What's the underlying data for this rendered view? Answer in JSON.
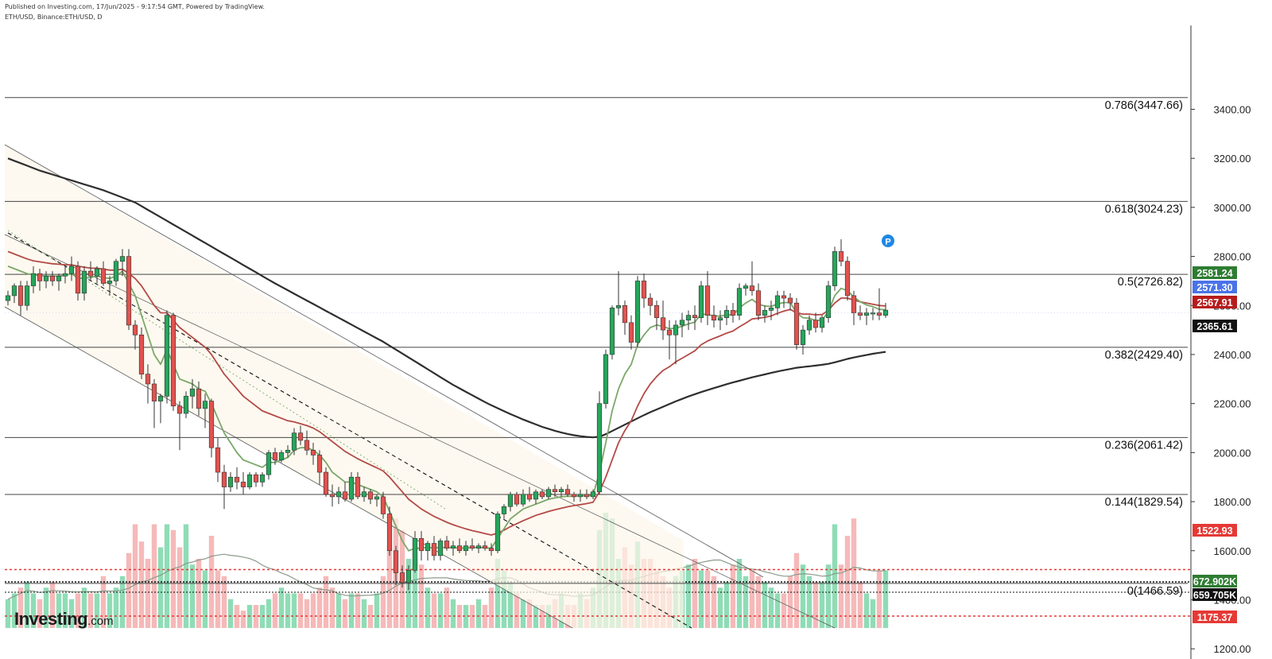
{
  "header": {
    "published": "Published on Investing.com, 17/Jun/2025 - 9:17:54 GMT, Powered by TradingView.",
    "symbol": "ETH/USD, Binance:ETH/USD, D"
  },
  "logo": {
    "main": "Investing",
    "suffix": ".com"
  },
  "colors": {
    "up": "#26a65b",
    "down": "#e0534f",
    "ema_fast": "#7aa86a",
    "ema_mid": "#b34a46",
    "sma_long": "#2e2e2e",
    "vol_up": "#8fdcb6",
    "vol_down": "#f6b9b9",
    "support": "#e53935",
    "badge_green": "#2e7d32",
    "badge_blue": "#4a73e8",
    "badge_red": "#b71c1c",
    "badge_black": "#111111"
  },
  "chart_data": {
    "type": "candlestick",
    "title": "ETH/USD, Binance:ETH/USD, D",
    "price_range": [
      1220,
      3620
    ],
    "grid": false,
    "price_ticks": [
      "3400.00",
      "3200.00",
      "3000.00",
      "2800.00",
      "2600.00",
      "2400.00",
      "2200.00",
      "2000.00",
      "1800.00",
      "1600.00",
      "1400.00",
      "1200.00"
    ],
    "fib_levels": [
      {
        "label": "0.786(3447.66)",
        "value": 3447.66
      },
      {
        "label": "0.618(3024.23)",
        "value": 3024.23
      },
      {
        "label": "0.5(2726.82)",
        "value": 2726.82
      },
      {
        "label": "0.382(2429.40)",
        "value": 2429.4
      },
      {
        "label": "0.236(2061.42)",
        "value": 2061.42
      },
      {
        "label": "0.144(1829.54)",
        "value": 1829.54
      },
      {
        "label": "0(1466.59)",
        "value": 1466.59
      }
    ],
    "support_levels": [
      1522.93,
      1175.37
    ],
    "price_badges": [
      {
        "label": "2581.24",
        "value": 2581.24,
        "color": "#2e7d32"
      },
      {
        "label": "2571.30",
        "value": 2571.3,
        "color": "#4a73e8"
      },
      {
        "label": "2567.91",
        "value": 2567.91,
        "color": "#b71c1c"
      },
      {
        "label": "2365.61",
        "value": 2365.61,
        "color": "#111111"
      },
      {
        "label": "1522.93",
        "value": 1522.93,
        "color": "#e53935"
      },
      {
        "label": "1175.37",
        "value": 1175.37,
        "color": "#e53935"
      }
    ],
    "volume_badges": [
      {
        "label": "672.902K",
        "color": "#2e7d32"
      },
      {
        "label": "659.705K",
        "color": "#111111"
      }
    ],
    "candles": [
      [
        2620,
        2660,
        2600,
        2640
      ],
      [
        2640,
        2690,
        2610,
        2680
      ],
      [
        2680,
        2700,
        2560,
        2600
      ],
      [
        2600,
        2700,
        2580,
        2680
      ],
      [
        2680,
        2760,
        2650,
        2730
      ],
      [
        2730,
        2750,
        2660,
        2700
      ],
      [
        2700,
        2740,
        2670,
        2720
      ],
      [
        2720,
        2740,
        2680,
        2700
      ],
      [
        2700,
        2730,
        2660,
        2720
      ],
      [
        2720,
        2760,
        2690,
        2730
      ],
      [
        2730,
        2800,
        2700,
        2760
      ],
      [
        2760,
        2780,
        2620,
        2650
      ],
      [
        2650,
        2760,
        2620,
        2740
      ],
      [
        2740,
        2780,
        2700,
        2720
      ],
      [
        2720,
        2760,
        2690,
        2750
      ],
      [
        2750,
        2780,
        2680,
        2690
      ],
      [
        2690,
        2720,
        2640,
        2700
      ],
      [
        2700,
        2790,
        2680,
        2780
      ],
      [
        2780,
        2830,
        2720,
        2800
      ],
      [
        2800,
        2830,
        2500,
        2520
      ],
      [
        2520,
        2540,
        2420,
        2480
      ],
      [
        2480,
        2510,
        2300,
        2320
      ],
      [
        2320,
        2360,
        2200,
        2280
      ],
      [
        2280,
        2300,
        2100,
        2210
      ],
      [
        2210,
        2240,
        2120,
        2230
      ],
      [
        2230,
        2580,
        2200,
        2560
      ],
      [
        2560,
        2570,
        2170,
        2190
      ],
      [
        2190,
        2210,
        2010,
        2160
      ],
      [
        2160,
        2250,
        2140,
        2230
      ],
      [
        2230,
        2300,
        2180,
        2260
      ],
      [
        2260,
        2290,
        2150,
        2180
      ],
      [
        2180,
        2240,
        2100,
        2210
      ],
      [
        2210,
        2220,
        1980,
        2020
      ],
      [
        2020,
        2060,
        1880,
        1920
      ],
      [
        1920,
        1950,
        1770,
        1860
      ],
      [
        1860,
        1920,
        1840,
        1900
      ],
      [
        1900,
        1940,
        1850,
        1880
      ],
      [
        1880,
        1920,
        1830,
        1860
      ],
      [
        1860,
        1920,
        1850,
        1910
      ],
      [
        1910,
        1920,
        1860,
        1880
      ],
      [
        1880,
        1920,
        1860,
        1910
      ],
      [
        1910,
        2010,
        1890,
        2000
      ],
      [
        2000,
        2020,
        1950,
        1970
      ],
      [
        1970,
        2010,
        1960,
        2000
      ],
      [
        2000,
        2030,
        1980,
        2010
      ],
      [
        2010,
        2100,
        1990,
        2080
      ],
      [
        2080,
        2110,
        2030,
        2050
      ],
      [
        2050,
        2090,
        1990,
        2010
      ],
      [
        2010,
        2040,
        1950,
        1990
      ],
      [
        1990,
        2010,
        1870,
        1920
      ],
      [
        1920,
        1940,
        1820,
        1830
      ],
      [
        1830,
        1870,
        1780,
        1820
      ],
      [
        1820,
        1860,
        1790,
        1840
      ],
      [
        1840,
        1880,
        1800,
        1810
      ],
      [
        1810,
        1920,
        1800,
        1900
      ],
      [
        1900,
        1920,
        1810,
        1820
      ],
      [
        1820,
        1860,
        1800,
        1840
      ],
      [
        1840,
        1850,
        1790,
        1810
      ],
      [
        1810,
        1830,
        1780,
        1820
      ],
      [
        1820,
        1840,
        1730,
        1750
      ],
      [
        1750,
        1780,
        1580,
        1600
      ],
      [
        1600,
        1620,
        1460,
        1510
      ],
      [
        1510,
        1540,
        1450,
        1470
      ],
      [
        1470,
        1540,
        1440,
        1520
      ],
      [
        1520,
        1680,
        1510,
        1650
      ],
      [
        1650,
        1680,
        1560,
        1600
      ],
      [
        1600,
        1640,
        1560,
        1630
      ],
      [
        1630,
        1660,
        1560,
        1580
      ],
      [
        1580,
        1650,
        1560,
        1640
      ],
      [
        1640,
        1660,
        1600,
        1610
      ],
      [
        1610,
        1640,
        1580,
        1620
      ],
      [
        1620,
        1650,
        1590,
        1600
      ],
      [
        1600,
        1640,
        1580,
        1620
      ],
      [
        1620,
        1650,
        1600,
        1610
      ],
      [
        1610,
        1630,
        1590,
        1620
      ],
      [
        1620,
        1640,
        1600,
        1610
      ],
      [
        1610,
        1630,
        1580,
        1600
      ],
      [
        1600,
        1760,
        1590,
        1750
      ],
      [
        1750,
        1790,
        1730,
        1780
      ],
      [
        1780,
        1840,
        1760,
        1830
      ],
      [
        1830,
        1840,
        1780,
        1790
      ],
      [
        1790,
        1850,
        1780,
        1830
      ],
      [
        1830,
        1860,
        1800,
        1810
      ],
      [
        1810,
        1850,
        1790,
        1840
      ],
      [
        1840,
        1850,
        1810,
        1820
      ],
      [
        1820,
        1860,
        1810,
        1850
      ],
      [
        1850,
        1870,
        1820,
        1840
      ],
      [
        1840,
        1860,
        1820,
        1850
      ],
      [
        1850,
        1870,
        1820,
        1830
      ],
      [
        1830,
        1840,
        1800,
        1820
      ],
      [
        1820,
        1850,
        1800,
        1830
      ],
      [
        1830,
        1850,
        1810,
        1820
      ],
      [
        1820,
        1850,
        1810,
        1840
      ],
      [
        1840,
        2250,
        1830,
        2200
      ],
      [
        2200,
        2420,
        2180,
        2400
      ],
      [
        2400,
        2600,
        2380,
        2590
      ],
      [
        2590,
        2740,
        2560,
        2600
      ],
      [
        2600,
        2620,
        2480,
        2530
      ],
      [
        2530,
        2560,
        2420,
        2450
      ],
      [
        2450,
        2720,
        2430,
        2700
      ],
      [
        2700,
        2730,
        2590,
        2630
      ],
      [
        2630,
        2650,
        2560,
        2600
      ],
      [
        2600,
        2620,
        2500,
        2550
      ],
      [
        2550,
        2620,
        2460,
        2500
      ],
      [
        2500,
        2540,
        2380,
        2480
      ],
      [
        2480,
        2540,
        2360,
        2520
      ],
      [
        2520,
        2570,
        2470,
        2540
      ],
      [
        2540,
        2580,
        2500,
        2560
      ],
      [
        2560,
        2600,
        2500,
        2550
      ],
      [
        2550,
        2700,
        2530,
        2680
      ],
      [
        2680,
        2740,
        2520,
        2560
      ],
      [
        2560,
        2600,
        2510,
        2540
      ],
      [
        2540,
        2580,
        2500,
        2550
      ],
      [
        2550,
        2600,
        2520,
        2580
      ],
      [
        2580,
        2610,
        2530,
        2560
      ],
      [
        2560,
        2690,
        2540,
        2670
      ],
      [
        2670,
        2690,
        2640,
        2680
      ],
      [
        2680,
        2780,
        2640,
        2660
      ],
      [
        2660,
        2690,
        2540,
        2560
      ],
      [
        2560,
        2600,
        2530,
        2580
      ],
      [
        2580,
        2620,
        2540,
        2590
      ],
      [
        2590,
        2660,
        2560,
        2640
      ],
      [
        2640,
        2660,
        2590,
        2630
      ],
      [
        2630,
        2650,
        2580,
        2610
      ],
      [
        2610,
        2630,
        2420,
        2440
      ],
      [
        2440,
        2520,
        2400,
        2500
      ],
      [
        2500,
        2560,
        2480,
        2540
      ],
      [
        2540,
        2570,
        2490,
        2510
      ],
      [
        2510,
        2560,
        2490,
        2550
      ],
      [
        2550,
        2700,
        2530,
        2680
      ],
      [
        2680,
        2840,
        2660,
        2820
      ],
      [
        2820,
        2870,
        2760,
        2780
      ],
      [
        2780,
        2800,
        2620,
        2640
      ],
      [
        2640,
        2660,
        2520,
        2570
      ],
      [
        2570,
        2600,
        2540,
        2560
      ],
      [
        2560,
        2590,
        2520,
        2570
      ],
      [
        2570,
        2590,
        2540,
        2570
      ],
      [
        2570,
        2670,
        2540,
        2560
      ],
      [
        2560,
        2610,
        2550,
        2581
      ]
    ],
    "ema_fast": [
      2760,
      2750,
      2740,
      2730,
      2725,
      2722,
      2720,
      2720,
      2720,
      2722,
      2730,
      2710,
      2712,
      2714,
      2720,
      2714,
      2710,
      2720,
      2740,
      2690,
      2640,
      2560,
      2480,
      2400,
      2360,
      2420,
      2360,
      2300,
      2290,
      2280,
      2260,
      2250,
      2200,
      2140,
      2080,
      2040,
      2000,
      1970,
      1960,
      1950,
      1940,
      1960,
      1960,
      1970,
      1980,
      2010,
      2020,
      2020,
      2010,
      1990,
      1960,
      1920,
      1900,
      1880,
      1880,
      1870,
      1860,
      1850,
      1840,
      1820,
      1760,
      1700,
      1640,
      1600,
      1610,
      1610,
      1615,
      1610,
      1615,
      1612,
      1614,
      1610,
      1612,
      1612,
      1614,
      1612,
      1610,
      1650,
      1690,
      1730,
      1750,
      1770,
      1780,
      1790,
      1800,
      1810,
      1815,
      1820,
      1822,
      1822,
      1824,
      1823,
      1826,
      1920,
      2040,
      2170,
      2260,
      2320,
      2360,
      2440,
      2480,
      2510,
      2520,
      2515,
      2505,
      2508,
      2515,
      2525,
      2532,
      2565,
      2563,
      2558,
      2556,
      2562,
      2561,
      2590,
      2610,
      2625,
      2605,
      2598,
      2596,
      2606,
      2612,
      2612,
      2570,
      2550,
      2548,
      2538,
      2541,
      2575,
      2640,
      2670,
      2660,
      2635,
      2615,
      2602,
      2595,
      2584,
      2583
    ],
    "ema_mid": [
      2820,
      2810,
      2800,
      2790,
      2782,
      2778,
      2774,
      2770,
      2768,
      2766,
      2766,
      2760,
      2756,
      2752,
      2752,
      2748,
      2744,
      2744,
      2748,
      2730,
      2710,
      2680,
      2640,
      2600,
      2570,
      2570,
      2540,
      2510,
      2490,
      2470,
      2450,
      2430,
      2400,
      2360,
      2320,
      2290,
      2260,
      2230,
      2210,
      2190,
      2170,
      2160,
      2150,
      2140,
      2130,
      2125,
      2118,
      2110,
      2100,
      2085,
      2065,
      2045,
      2025,
      2005,
      1990,
      1975,
      1962,
      1950,
      1938,
      1925,
      1900,
      1870,
      1840,
      1810,
      1790,
      1770,
      1755,
      1740,
      1728,
      1716,
      1706,
      1697,
      1689,
      1682,
      1676,
      1670,
      1664,
      1672,
      1684,
      1698,
      1710,
      1722,
      1733,
      1744,
      1752,
      1760,
      1767,
      1773,
      1779,
      1784,
      1788,
      1792,
      1798,
      1840,
      1900,
      1970,
      2040,
      2090,
      2130,
      2190,
      2240,
      2280,
      2310,
      2335,
      2350,
      2370,
      2385,
      2400,
      2415,
      2440,
      2455,
      2466,
      2476,
      2487,
      2496,
      2513,
      2528,
      2545,
      2548,
      2552,
      2557,
      2568,
      2577,
      2584,
      2570,
      2565,
      2565,
      2562,
      2563,
      2580,
      2610,
      2630,
      2630,
      2622,
      2615,
      2610,
      2605,
      2600,
      2598
    ],
    "sma_long": [
      3200,
      3190,
      3180,
      3170,
      3160,
      3150,
      3142,
      3134,
      3126,
      3118,
      3110,
      3102,
      3094,
      3086,
      3078,
      3070,
      3060,
      3050,
      3040,
      3030,
      3020,
      3005,
      2990,
      2975,
      2960,
      2945,
      2930,
      2915,
      2900,
      2885,
      2870,
      2855,
      2840,
      2825,
      2810,
      2795,
      2780,
      2765,
      2750,
      2735,
      2720,
      2705,
      2690,
      2676,
      2662,
      2648,
      2634,
      2620,
      2606,
      2592,
      2578,
      2564,
      2550,
      2536,
      2522,
      2508,
      2494,
      2480,
      2466,
      2452,
      2436,
      2420,
      2404,
      2388,
      2372,
      2356,
      2340,
      2324,
      2308,
      2292,
      2276,
      2262,
      2248,
      2234,
      2220,
      2206,
      2193,
      2181,
      2169,
      2157,
      2146,
      2135,
      2125,
      2115,
      2105,
      2097,
      2089,
      2082,
      2076,
      2071,
      2067,
      2064,
      2062,
      2065,
      2075,
      2088,
      2101,
      2114,
      2127,
      2140,
      2153,
      2165,
      2176,
      2187,
      2198,
      2209,
      2219,
      2229,
      2238,
      2247,
      2255,
      2263,
      2271,
      2279,
      2286,
      2293,
      2300,
      2307,
      2313,
      2319,
      2325,
      2331,
      2336,
      2341,
      2346,
      2349,
      2352,
      2355,
      2358,
      2362,
      2368,
      2375,
      2382,
      2388,
      2393,
      2398,
      2403,
      2407,
      2411
    ],
    "volumes": [
      0.25,
      0.3,
      0.35,
      0.4,
      0.3,
      0.25,
      0.35,
      0.4,
      0.3,
      0.3,
      0.25,
      0.3,
      0.35,
      0.3,
      0.3,
      0.45,
      0.3,
      0.35,
      0.45,
      0.65,
      0.9,
      0.75,
      0.6,
      0.9,
      0.7,
      0.9,
      0.85,
      0.7,
      0.9,
      0.55,
      0.6,
      0.5,
      0.8,
      0.5,
      0.45,
      0.25,
      0.2,
      0.15,
      0.2,
      0.2,
      0.2,
      0.25,
      0.3,
      0.35,
      0.3,
      0.3,
      0.3,
      0.25,
      0.3,
      0.35,
      0.45,
      0.35,
      0.3,
      0.25,
      0.3,
      0.3,
      0.25,
      0.2,
      0.3,
      0.45,
      0.7,
      0.95,
      0.85,
      0.6,
      0.6,
      0.55,
      0.35,
      0.3,
      0.3,
      0.35,
      0.25,
      0.2,
      0.2,
      0.2,
      0.25,
      0.2,
      0.35,
      0.6,
      0.5,
      0.4,
      0.3,
      0.25,
      0.25,
      0.2,
      0.2,
      0.2,
      0.25,
      0.3,
      0.2,
      0.2,
      0.3,
      0.25,
      0.35,
      0.85,
      1.0,
      0.95,
      0.6,
      0.7,
      0.55,
      0.75,
      0.6,
      0.6,
      0.5,
      0.45,
      0.35,
      0.45,
      0.5,
      0.55,
      0.6,
      0.5,
      0.5,
      0.45,
      0.35,
      0.4,
      0.55,
      0.6,
      0.45,
      0.5,
      0.45,
      0.4,
      0.35,
      0.3,
      0.3,
      0.45,
      0.65,
      0.55,
      0.45,
      0.4,
      0.4,
      0.55,
      0.9,
      0.55,
      0.8,
      0.95,
      0.4,
      0.3,
      0.25,
      0.5,
      0.5
    ]
  }
}
